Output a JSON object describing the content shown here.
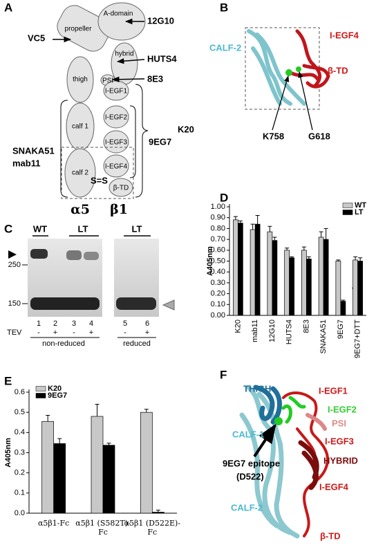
{
  "panel_a": {
    "label": "A",
    "domains": [
      "propeller",
      "A-domain",
      "hybrid",
      "thigh",
      "PSI",
      "I-EGF1",
      "I-EGF2",
      "calf 1",
      "I-EGF3",
      "I-EGF4",
      "calf 2",
      "β-TD"
    ],
    "antibodies": [
      "12G10",
      "VC5",
      "HUTS4",
      "8E3",
      "K20",
      "9EG7",
      "SNAKA51",
      "mab11"
    ],
    "disulfide": "S=S",
    "subunits": [
      "α5",
      "β1"
    ]
  },
  "panel_b": {
    "label": "B",
    "regions": [
      "CALF-2",
      "I-EGF4",
      "β-TD"
    ],
    "residues": [
      "K758",
      "G618"
    ]
  },
  "panel_c": {
    "label": "C",
    "groups": [
      "WT",
      "LT",
      "LT"
    ],
    "markers": [
      250,
      150
    ],
    "lanes": [
      1,
      2,
      3,
      4,
      5,
      6
    ],
    "treatment": "TEV",
    "conditions": [
      "-",
      "+",
      "-",
      "+",
      "-",
      "+"
    ],
    "sections": [
      "non-reduced",
      "reduced"
    ]
  },
  "chart_data": [
    {
      "type": "bar",
      "panel_label": "D",
      "y_label": "A405nm",
      "categories": [
        "K20",
        "mab11",
        "12G10",
        "HUTS4",
        "8E3",
        "SNAKA51",
        "9EG7",
        "9EG7+DTT"
      ],
      "series": [
        {
          "name": "WT",
          "color": "#c8c8c8",
          "values": [
            0.88,
            0.79,
            0.77,
            0.6,
            0.6,
            0.72,
            0.5,
            0.51
          ],
          "errors": [
            0.03,
            0.05,
            0.05,
            0.02,
            0.03,
            0.05,
            0.01,
            0.03
          ]
        },
        {
          "name": "LT",
          "color": "#000000",
          "values": [
            0.85,
            0.84,
            0.69,
            0.53,
            0.52,
            0.7,
            0.13,
            0.5
          ],
          "errors": [
            0.02,
            0.08,
            0.03,
            0.01,
            0.02,
            0.1,
            0.01,
            0.03
          ]
        }
      ],
      "ylim": [
        0,
        1
      ],
      "yticks": [
        {
          "value": 0,
          "label": "0.00"
        },
        {
          "value": 0.1,
          "label": "0.10"
        },
        {
          "value": 0.2,
          "label": "0.20"
        },
        {
          "value": 0.3,
          "label": "0.30"
        },
        {
          "value": 0.4,
          "label": "0.40"
        },
        {
          "value": 0.5,
          "label": "0.50"
        },
        {
          "value": 0.6,
          "label": "0.60"
        },
        {
          "value": 0.7,
          "label": "0.70"
        },
        {
          "value": 0.8,
          "label": "0.80"
        },
        {
          "value": 0.9,
          "label": "0.90"
        },
        {
          "value": 1,
          "label": "1.00"
        }
      ],
      "annotation": "*",
      "legend": "top-right"
    },
    {
      "type": "bar",
      "panel_label": "E",
      "y_label": "A405nm",
      "categories": [
        "α5β1-Fc",
        "α5β1 (S582T)-Fc",
        "α5β1 (D522E)-Fc"
      ],
      "series": [
        {
          "name": "K20",
          "color": "#c8c8c8",
          "values": [
            0.455,
            0.48,
            0.5
          ],
          "errors": [
            0.03,
            0.06,
            0.015
          ]
        },
        {
          "name": "9EG7",
          "color": "#000000",
          "values": [
            0.345,
            0.337,
            0.005
          ],
          "errors": [
            0.025,
            0.01,
            0.01
          ]
        }
      ],
      "ylim": [
        0,
        0.6
      ],
      "yticks": [
        {
          "value": 0,
          "label": "0.0"
        },
        0.1,
        0.2,
        0.3,
        0.4,
        0.5,
        0.6
      ],
      "legend": "top-left"
    }
  ],
  "panel_f": {
    "label": "F",
    "regions": [
      "THIGH",
      "CALF-1",
      "I-EGF1",
      "I-EGF2",
      "PSI",
      "I-EGF3",
      "HYBRID",
      "I-EGF4",
      "CALF-2",
      "β-TD"
    ],
    "epitope": "9EG7 epitope",
    "epitope_residue": "(D522)"
  }
}
